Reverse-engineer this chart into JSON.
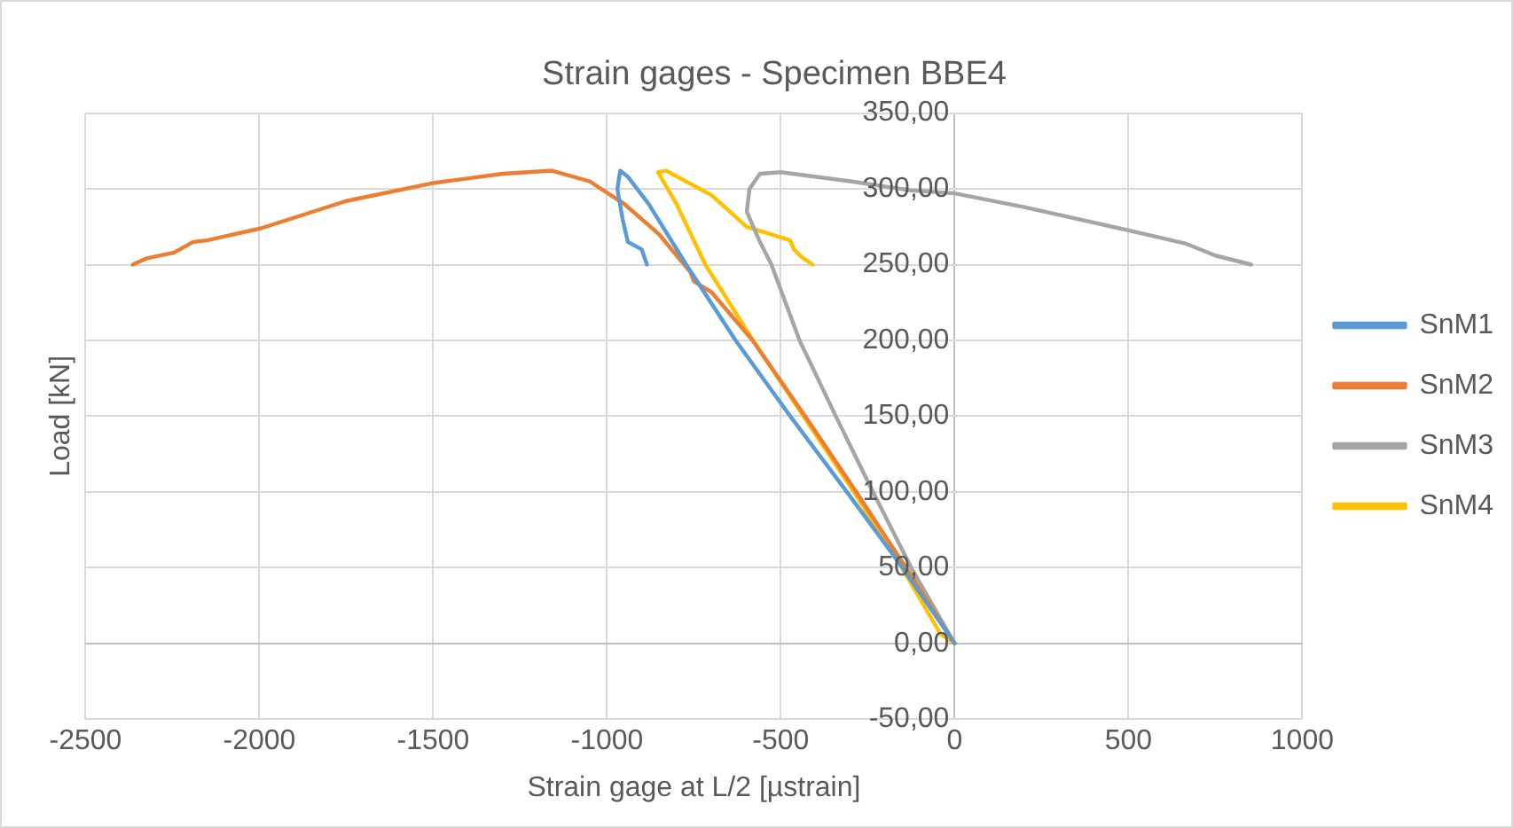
{
  "chart_data": {
    "type": "line",
    "title": "Strain gages - Specimen BBE4",
    "xlabel": "Strain gage at L/2 [µstrain]",
    "ylabel": "Load [kN]",
    "xlim": [
      -2500,
      1000
    ],
    "xticks": [
      -2500,
      -2000,
      -1500,
      -1000,
      -500,
      0,
      500,
      1000
    ],
    "ylim": [
      -50,
      350
    ],
    "yticks": [
      {
        "value": -50,
        "label": "-50,00"
      },
      {
        "value": 0,
        "label": "0,00"
      },
      {
        "value": 50,
        "label": "50,00"
      },
      {
        "value": 100,
        "label": "100,00"
      },
      {
        "value": 150,
        "label": "150,00"
      },
      {
        "value": 200,
        "label": "200,00"
      },
      {
        "value": 250,
        "label": "250,00"
      },
      {
        "value": 300,
        "label": "300,00"
      },
      {
        "value": 350,
        "label": "350,00"
      }
    ],
    "grid": true,
    "legend": "right",
    "series": [
      {
        "name": "SnM1",
        "color": "#5b9bd5",
        "x": [
          0,
          -150,
          -310,
          -473,
          -630,
          -772,
          -880,
          -940,
          -962,
          -970,
          -955,
          -940,
          -900,
          -885
        ],
        "values": [
          0,
          50,
          100,
          150,
          200,
          250,
          290,
          308,
          312,
          300,
          280,
          265,
          260,
          250
        ]
      },
      {
        "name": "SnM2",
        "color": "#ed7d31",
        "x": [
          0,
          -140,
          -283,
          -430,
          -581,
          -700,
          -750,
          -760,
          -850,
          -950,
          -1050,
          -1158,
          -1300,
          -1495,
          -1750,
          -1995,
          -2150,
          -2190,
          -2245,
          -2326,
          -2364
        ],
        "values": [
          0,
          50,
          100,
          150,
          200,
          232,
          239,
          245,
          270,
          290,
          305,
          312,
          310,
          304,
          292,
          274,
          266,
          265,
          258,
          254,
          250
        ]
      },
      {
        "name": "SnM3",
        "color": "#a5a5a5",
        "x": [
          0,
          -125,
          -235,
          -342,
          -446,
          -527,
          -560,
          -598,
          -590,
          -560,
          -500,
          -300,
          -125,
          0,
          200,
          473,
          663,
          750,
          853
        ],
        "values": [
          0,
          50,
          100,
          150,
          200,
          250,
          265,
          285,
          300,
          310,
          311,
          305,
          299,
          297,
          288,
          274,
          264,
          256,
          250
        ]
      },
      {
        "name": "SnM4",
        "color": "#ffc000",
        "x": [
          0,
          -40,
          -152,
          -290,
          -435,
          -580,
          -717,
          -800,
          -853,
          -830,
          -700,
          -598,
          -500,
          -473,
          -462,
          -440,
          -408
        ],
        "values": [
          0,
          6,
          50,
          100,
          150,
          200,
          250,
          290,
          311,
          312,
          296,
          275,
          268,
          266,
          260,
          255,
          250
        ]
      }
    ]
  }
}
